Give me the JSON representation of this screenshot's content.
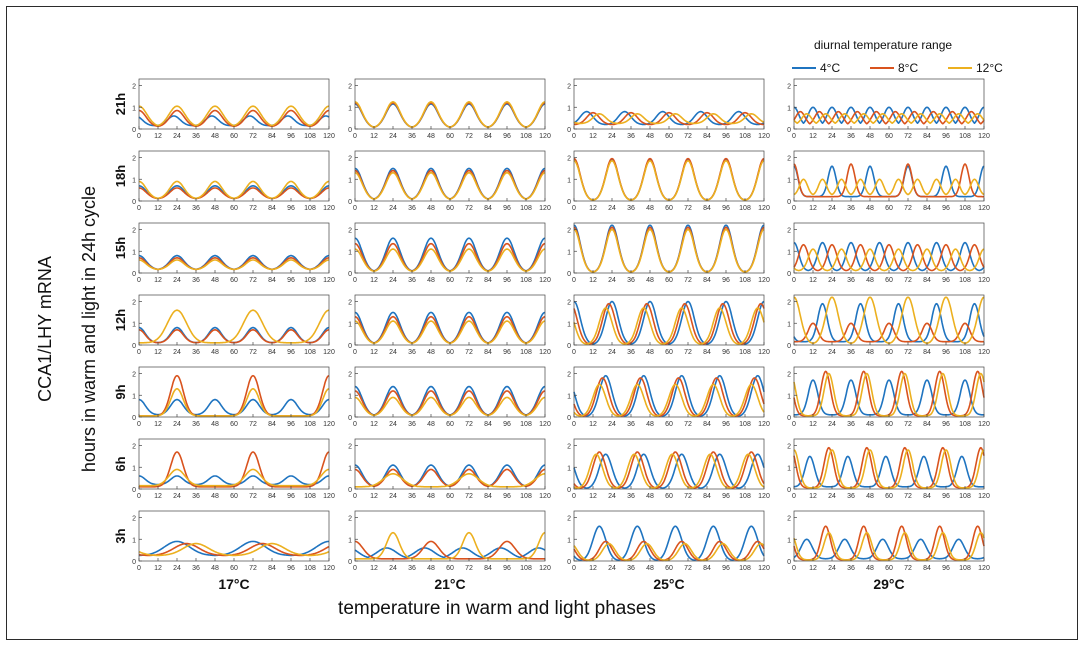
{
  "chart_data": {
    "type": "line",
    "title": "",
    "xlabel": "temperature in warm and light phases",
    "ylabel_line1": "CCA1/LHY mRNA",
    "ylabel_line2": "hours in warm and light in 24h cycle",
    "legend_title": "diurnal temperature range",
    "legend_placement": "top-right",
    "x_ticks": [
      "0",
      "12",
      "24",
      "36",
      "48",
      "60",
      "72",
      "84",
      "96",
      "108",
      "120"
    ],
    "xlim": [
      0,
      120
    ],
    "y_ticks": [
      "0",
      "1",
      "2"
    ],
    "ylim": [
      0,
      2.3
    ],
    "columns": [
      "17°C",
      "21°C",
      "25°C",
      "29°C"
    ],
    "rows": [
      "21h",
      "18h",
      "15h",
      "12h",
      "9h",
      "6h",
      "3h"
    ],
    "series": [
      {
        "name": "4°C",
        "color": "#1f74c0"
      },
      {
        "name": "8°C",
        "color": "#d9531e"
      },
      {
        "name": "12°C",
        "color": "#ecb01f"
      }
    ],
    "panels": [
      [
        {
          "s": [
            {
              "peak": 0.6,
              "phase": 22,
              "period": 24,
              "width": 4.0,
              "base": 0.15
            },
            {
              "peak": 0.85,
              "phase": 72,
              "period": 24,
              "width": 4.5,
              "base": 0.1
            },
            {
              "peak": 1.05,
              "phase": 48,
              "period": 24,
              "width": 5.0,
              "base": 0.1
            }
          ]
        },
        {
          "s": [
            {
              "peak": 1.15,
              "phase": 0,
              "period": 24,
              "width": 4.5,
              "base": 0.05
            },
            {
              "peak": 1.2,
              "phase": 0,
              "period": 24,
              "width": 4.5,
              "base": 0.05
            },
            {
              "peak": 1.25,
              "phase": 0,
              "period": 24,
              "width": 4.5,
              "base": 0.05
            }
          ]
        },
        {
          "s": [
            {
              "peak": 0.8,
              "phase": 8,
              "period": 24,
              "width": 4.0,
              "base": 0.2
            },
            {
              "peak": 0.75,
              "phase": 12,
              "period": 24,
              "width": 4.0,
              "base": 0.2
            },
            {
              "peak": 0.7,
              "phase": 16,
              "period": 24,
              "width": 4.0,
              "base": 0.25
            }
          ]
        },
        {
          "s": [
            {
              "peak": 1.0,
              "phase": 0,
              "period": 12,
              "width": 3.0,
              "base": 0.15
            },
            {
              "peak": 0.8,
              "phase": 4,
              "period": 12,
              "width": 3.0,
              "base": 0.15
            },
            {
              "peak": 0.7,
              "phase": 8,
              "period": 12,
              "width": 3.0,
              "base": 0.2
            }
          ]
        }
      ],
      [
        {
          "s": [
            {
              "peak": 0.7,
              "phase": 0,
              "period": 24,
              "width": 4.5,
              "base": 0.1
            },
            {
              "peak": 0.6,
              "phase": 0,
              "period": 24,
              "width": 4.5,
              "base": 0.1
            },
            {
              "peak": 0.9,
              "phase": 0,
              "period": 24,
              "width": 4.5,
              "base": 0.1
            }
          ]
        },
        {
          "s": [
            {
              "peak": 1.5,
              "phase": 0,
              "period": 24,
              "width": 4.5,
              "base": 0.05
            },
            {
              "peak": 1.4,
              "phase": 0,
              "period": 24,
              "width": 4.5,
              "base": 0.05
            },
            {
              "peak": 1.3,
              "phase": 0,
              "period": 24,
              "width": 4.5,
              "base": 0.05
            }
          ]
        },
        {
          "s": [
            {
              "peak": 1.9,
              "phase": 0,
              "period": 24,
              "width": 4.0,
              "base": 0.02
            },
            {
              "peak": 1.95,
              "phase": 0,
              "period": 24,
              "width": 4.0,
              "base": 0.02
            },
            {
              "peak": 1.85,
              "phase": 0,
              "period": 24,
              "width": 4.0,
              "base": 0.02
            }
          ]
        },
        {
          "s": [
            {
              "peak": 1.6,
              "phase": 0,
              "period": 24,
              "width": 2.5,
              "base": 0.2
            },
            {
              "peak": 1.7,
              "phase": 0,
              "period": 36,
              "width": 2.5,
              "base": 0.2
            },
            {
              "peak": 1.0,
              "phase": 6,
              "period": 12,
              "width": 2.5,
              "base": 0.25
            }
          ]
        }
      ],
      [
        {
          "s": [
            {
              "peak": 0.8,
              "phase": 0,
              "period": 24,
              "width": 4.5,
              "base": 0.15
            },
            {
              "peak": 0.7,
              "phase": 0,
              "period": 24,
              "width": 4.5,
              "base": 0.15
            },
            {
              "peak": 0.6,
              "phase": 0,
              "period": 24,
              "width": 4.5,
              "base": 0.15
            }
          ]
        },
        {
          "s": [
            {
              "peak": 1.6,
              "phase": 0,
              "period": 24,
              "width": 4.5,
              "base": 0.05
            },
            {
              "peak": 1.35,
              "phase": 0,
              "period": 24,
              "width": 4.5,
              "base": 0.05
            },
            {
              "peak": 1.1,
              "phase": 0,
              "period": 24,
              "width": 4.5,
              "base": 0.05
            }
          ]
        },
        {
          "s": [
            {
              "peak": 2.2,
              "phase": 0,
              "period": 24,
              "width": 4.0,
              "base": 0.02
            },
            {
              "peak": 2.1,
              "phase": 0,
              "period": 24,
              "width": 4.0,
              "base": 0.02
            },
            {
              "peak": 2.0,
              "phase": 0,
              "period": 24,
              "width": 4.0,
              "base": 0.02
            }
          ]
        },
        {
          "s": [
            {
              "peak": 1.4,
              "phase": 0,
              "period": 18,
              "width": 3.0,
              "base": 0.1
            },
            {
              "peak": 1.3,
              "phase": 6,
              "period": 18,
              "width": 3.0,
              "base": 0.1
            },
            {
              "peak": 1.1,
              "phase": 12,
              "period": 18,
              "width": 3.0,
              "base": 0.1
            }
          ]
        }
      ],
      [
        {
          "s": [
            {
              "peak": 0.8,
              "phase": 0,
              "period": 24,
              "width": 4.0,
              "base": 0.1
            },
            {
              "peak": 0.7,
              "phase": 0,
              "period": 24,
              "width": 4.0,
              "base": 0.1
            },
            {
              "peak": 1.6,
              "phase": 24,
              "period": 48,
              "width": 6.0,
              "base": 0.1
            }
          ]
        },
        {
          "s": [
            {
              "peak": 1.5,
              "phase": 0,
              "period": 24,
              "width": 4.5,
              "base": 0.05
            },
            {
              "peak": 1.3,
              "phase": 0,
              "period": 24,
              "width": 4.5,
              "base": 0.05
            },
            {
              "peak": 1.1,
              "phase": 0,
              "period": 24,
              "width": 4.5,
              "base": 0.05
            }
          ]
        },
        {
          "s": [
            {
              "peak": 2.0,
              "phase": 24,
              "period": 24,
              "width": 4.0,
              "base": 0.02
            },
            {
              "peak": 1.9,
              "phase": 22,
              "period": 24,
              "width": 4.0,
              "base": 0.02
            },
            {
              "peak": 1.7,
              "phase": 20,
              "period": 24,
              "width": 4.0,
              "base": 0.02
            }
          ]
        },
        {
          "s": [
            {
              "peak": 1.9,
              "phase": 18,
              "period": 24,
              "width": 3.0,
              "base": 0.15
            },
            {
              "peak": 1.0,
              "phase": 12,
              "period": 24,
              "width": 3.0,
              "base": 0.15
            },
            {
              "peak": 2.2,
              "phase": 24,
              "period": 24,
              "width": 4.0,
              "base": 0.05
            }
          ]
        }
      ],
      [
        {
          "s": [
            {
              "peak": 0.8,
              "phase": 0,
              "period": 24,
              "width": 4.0,
              "base": 0.1
            },
            {
              "peak": 1.9,
              "phase": 24,
              "period": 48,
              "width": 4.0,
              "base": 0.05
            },
            {
              "peak": 1.3,
              "phase": 24,
              "period": 48,
              "width": 4.0,
              "base": 0.05
            }
          ]
        },
        {
          "s": [
            {
              "peak": 1.4,
              "phase": 0,
              "period": 24,
              "width": 4.5,
              "base": 0.05
            },
            {
              "peak": 1.2,
              "phase": 0,
              "period": 24,
              "width": 4.5,
              "base": 0.05
            },
            {
              "peak": 0.9,
              "phase": 0,
              "period": 24,
              "width": 4.5,
              "base": 0.05
            }
          ]
        },
        {
          "s": [
            {
              "peak": 1.9,
              "phase": 20,
              "period": 24,
              "width": 4.0,
              "base": 0.02
            },
            {
              "peak": 1.8,
              "phase": 18,
              "period": 24,
              "width": 4.0,
              "base": 0.02
            },
            {
              "peak": 1.5,
              "phase": 16,
              "period": 24,
              "width": 4.0,
              "base": 0.02
            }
          ]
        },
        {
          "s": [
            {
              "peak": 1.7,
              "phase": 12,
              "period": 24,
              "width": 3.0,
              "base": 0.1
            },
            {
              "peak": 2.1,
              "phase": 20,
              "period": 24,
              "width": 3.0,
              "base": 0.05
            },
            {
              "peak": 2.0,
              "phase": 22,
              "period": 24,
              "width": 3.0,
              "base": 0.05
            }
          ]
        }
      ],
      [
        {
          "s": [
            {
              "peak": 0.6,
              "phase": 0,
              "period": 24,
              "width": 4.0,
              "base": 0.2
            },
            {
              "peak": 1.7,
              "phase": 24,
              "period": 48,
              "width": 4.0,
              "base": 0.1
            },
            {
              "peak": 0.9,
              "phase": 24,
              "period": 48,
              "width": 5.0,
              "base": 0.15
            }
          ]
        },
        {
          "s": [
            {
              "peak": 1.1,
              "phase": 24,
              "period": 24,
              "width": 4.5,
              "base": 0.1
            },
            {
              "peak": 0.9,
              "phase": 24,
              "period": 24,
              "width": 4.5,
              "base": 0.1
            },
            {
              "peak": 0.7,
              "phase": 24,
              "period": 48,
              "width": 6.0,
              "base": 0.1
            }
          ]
        },
        {
          "s": [
            {
              "peak": 1.6,
              "phase": 20,
              "period": 24,
              "width": 4.0,
              "base": 0.02
            },
            {
              "peak": 1.7,
              "phase": 16,
              "period": 24,
              "width": 4.0,
              "base": 0.02
            },
            {
              "peak": 1.6,
              "phase": 14,
              "period": 24,
              "width": 4.0,
              "base": 0.02
            }
          ]
        },
        {
          "s": [
            {
              "peak": 1.5,
              "phase": 10,
              "period": 24,
              "width": 3.0,
              "base": 0.1
            },
            {
              "peak": 1.9,
              "phase": 22,
              "period": 24,
              "width": 3.0,
              "base": 0.05
            },
            {
              "peak": 1.8,
              "phase": 0,
              "period": 24,
              "width": 3.0,
              "base": 0.05
            }
          ]
        }
      ],
      [
        {
          "s": [
            {
              "peak": 0.9,
              "phase": 24,
              "period": 48,
              "width": 8.0,
              "base": 0.25
            },
            {
              "peak": 0.8,
              "phase": 30,
              "period": 48,
              "width": 8.0,
              "base": 0.25
            },
            {
              "peak": 0.8,
              "phase": 36,
              "period": 48,
              "width": 8.0,
              "base": 0.25
            }
          ]
        },
        {
          "s": [
            {
              "peak": 0.6,
              "phase": 20,
              "period": 24,
              "width": 6.0,
              "base": 0.1
            },
            {
              "peak": 0.9,
              "phase": 96,
              "period": 48,
              "width": 5.0,
              "base": 0.1
            },
            {
              "peak": 1.3,
              "phase": 24,
              "period": 48,
              "width": 4.0,
              "base": 0.1
            }
          ]
        },
        {
          "s": [
            {
              "peak": 1.6,
              "phase": 16,
              "period": 24,
              "width": 4.0,
              "base": 0.02
            },
            {
              "peak": 0.9,
              "phase": 20,
              "period": 24,
              "width": 4.0,
              "base": 0.02
            },
            {
              "peak": 0.8,
              "phase": 22,
              "period": 24,
              "width": 4.0,
              "base": 0.02
            }
          ]
        },
        {
          "s": [
            {
              "peak": 1.0,
              "phase": 8,
              "period": 24,
              "width": 3.5,
              "base": 0.1
            },
            {
              "peak": 1.6,
              "phase": 20,
              "period": 24,
              "width": 3.0,
              "base": 0.05
            },
            {
              "peak": 1.3,
              "phase": 22,
              "period": 24,
              "width": 3.0,
              "base": 0.05
            }
          ]
        }
      ]
    ]
  }
}
